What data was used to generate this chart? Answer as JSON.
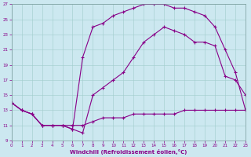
{
  "xlabel": "Windchill (Refroidissement éolien,°C)",
  "xlim": [
    0,
    23
  ],
  "ylim": [
    9,
    27
  ],
  "xticks": [
    0,
    1,
    2,
    3,
    4,
    5,
    6,
    7,
    8,
    9,
    10,
    11,
    12,
    13,
    14,
    15,
    16,
    17,
    18,
    19,
    20,
    21,
    22,
    23
  ],
  "yticks": [
    9,
    11,
    13,
    15,
    17,
    19,
    21,
    23,
    25,
    27
  ],
  "bg_color": "#cce8f0",
  "grid_color": "#a0cccc",
  "line_color": "#880088",
  "line1_x": [
    0,
    1,
    2,
    3,
    4,
    5,
    6,
    7,
    8,
    9,
    10,
    11,
    12,
    13,
    14,
    15,
    16,
    17,
    18,
    19,
    20,
    21,
    22,
    23
  ],
  "line1_y": [
    14,
    13,
    12.5,
    11,
    11,
    11,
    11,
    11,
    11.5,
    12,
    12,
    12,
    12.5,
    12.5,
    12.5,
    12.5,
    12.5,
    13,
    13,
    13,
    13,
    13,
    13,
    13
  ],
  "line2_x": [
    0,
    1,
    2,
    3,
    4,
    5,
    6,
    7,
    8,
    9,
    10,
    11,
    12,
    13,
    14,
    15,
    16,
    17,
    18,
    19,
    20,
    21,
    22,
    23
  ],
  "line2_y": [
    14,
    13,
    12.5,
    11,
    11,
    11,
    10.5,
    10,
    15,
    16,
    17,
    18,
    20,
    22,
    23,
    24,
    23.5,
    23,
    22,
    22,
    21.5,
    17.5,
    17,
    15
  ],
  "line3_x": [
    0,
    1,
    2,
    3,
    4,
    5,
    6,
    7,
    8,
    9,
    10,
    11,
    12,
    13,
    14,
    15,
    16,
    17,
    18,
    19,
    20,
    21,
    22,
    23
  ],
  "line3_y": [
    14,
    13,
    12.5,
    11,
    11,
    11,
    10.5,
    20,
    24,
    24.5,
    25.5,
    26,
    26.5,
    27,
    27,
    27,
    26.5,
    26.5,
    26,
    25.5,
    24,
    21,
    18,
    13
  ]
}
